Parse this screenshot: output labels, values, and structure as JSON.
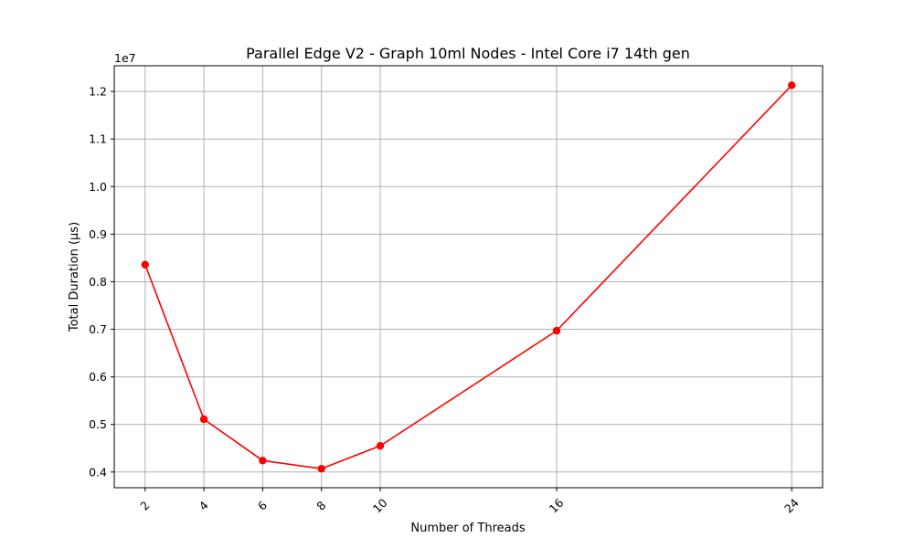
{
  "chart_data": {
    "type": "line",
    "title": "Parallel Edge V2 - Graph 10ml Nodes - Intel Core i7 14th gen",
    "xlabel": "Number of Threads",
    "ylabel": "Total Duration (µs)",
    "y_multiplier_label": "1e7",
    "x": [
      2,
      4,
      6,
      8,
      10,
      16,
      24
    ],
    "x_tick_labels": [
      "2",
      "4",
      "6",
      "8",
      "10",
      "16",
      "24"
    ],
    "series": [
      {
        "values": [
          8360000,
          5110000,
          4240000,
          4070000,
          4550000,
          6970000,
          12130000
        ]
      }
    ],
    "xlim": [
      0.95,
      25.05
    ],
    "ylim": [
      3670000,
      12540000
    ],
    "y_ticks": [
      4000000,
      5000000,
      6000000,
      7000000,
      8000000,
      9000000,
      10000000,
      11000000,
      12000000
    ],
    "y_tick_labels": [
      "0.4",
      "0.5",
      "0.6",
      "0.7",
      "0.8",
      "0.9",
      "1.0",
      "1.1",
      "1.2"
    ],
    "grid": true,
    "colors": {
      "line": "#ff0000",
      "marker": "#ff0000",
      "grid": "#b0b0b0"
    }
  }
}
